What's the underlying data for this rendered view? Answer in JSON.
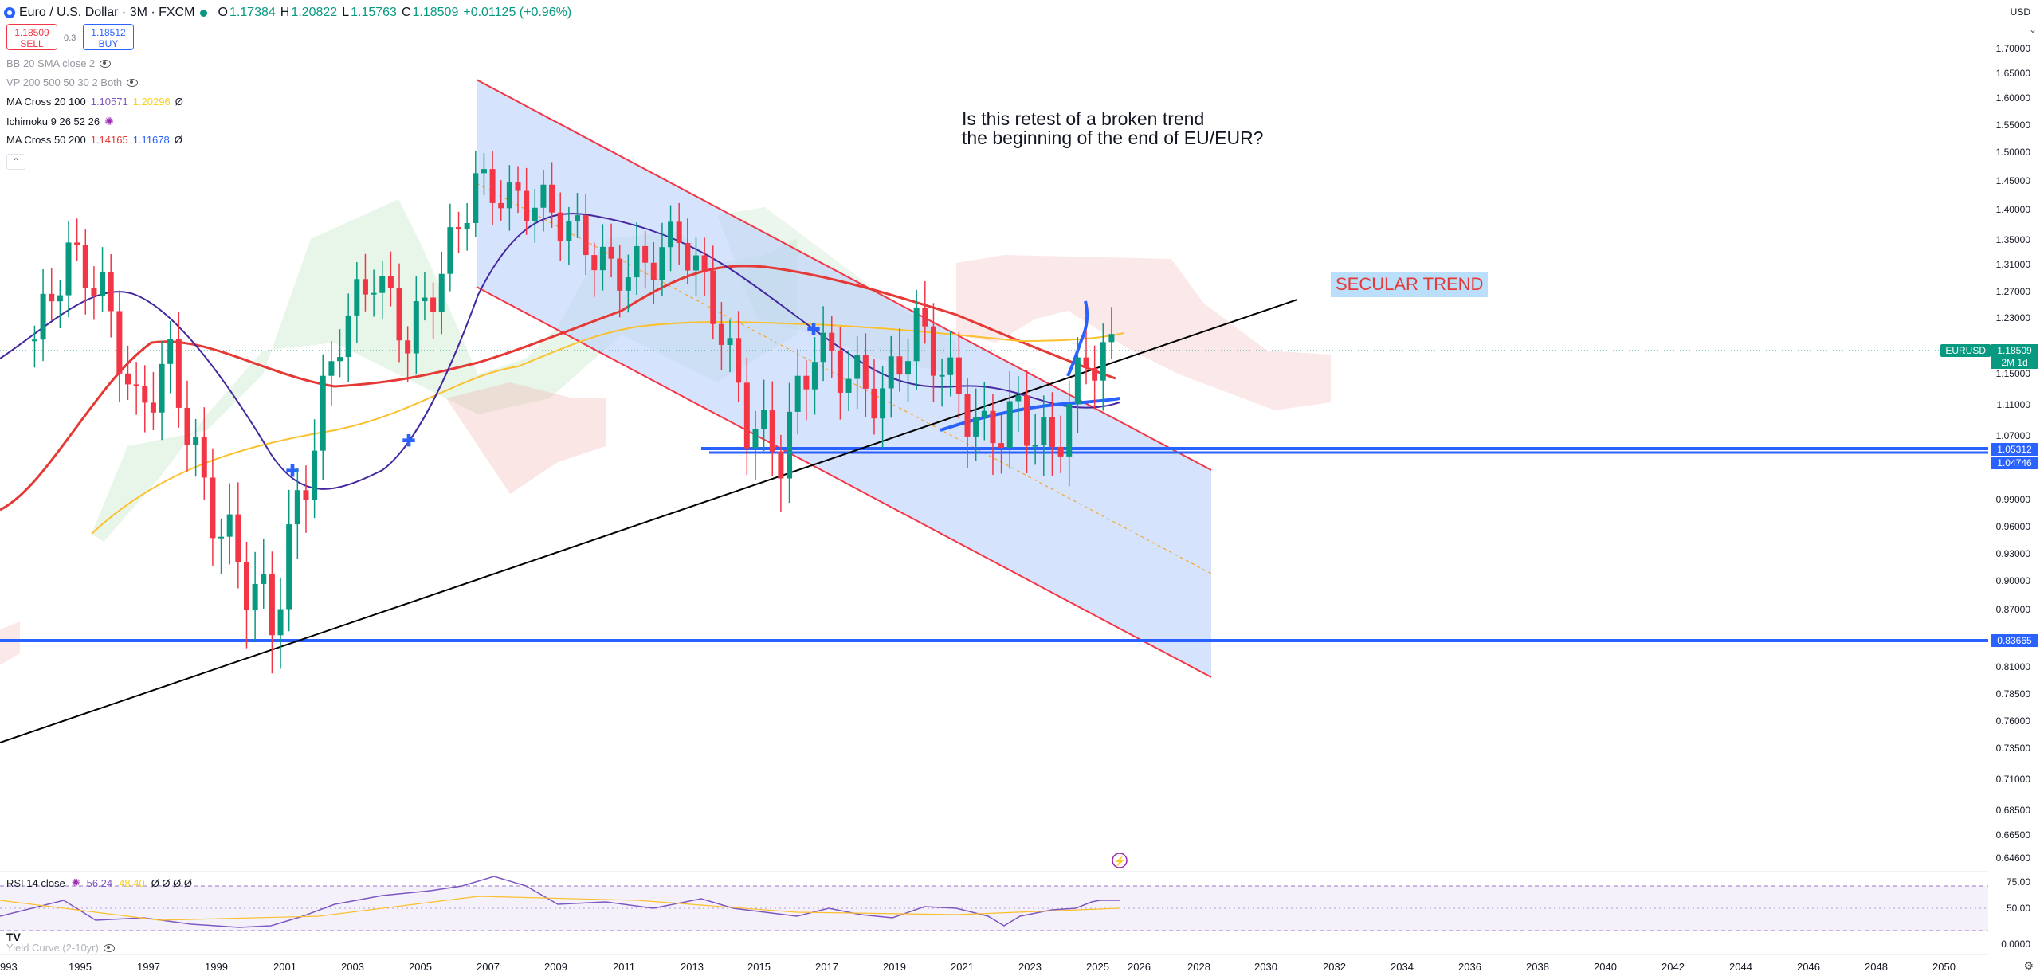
{
  "header": {
    "symbol": "Euro / U.S. Dollar",
    "interval": "3M",
    "exchange": "FXCM",
    "open_label": "O",
    "open": "1.17384",
    "high_label": "H",
    "high": "1.20822",
    "low_label": "L",
    "low": "1.15763",
    "close_label": "C",
    "close": "1.18509",
    "change": "+0.01125 (+0.96%)"
  },
  "trade": {
    "sell_price": "1.18509",
    "sell_label": "SELL",
    "spread": "0.3",
    "buy_price": "1.18512",
    "buy_label": "BUY"
  },
  "indicators": [
    {
      "name": "BB 20 SMA close 2"
    },
    {
      "name": "VP 200 500 50 30 2 Both"
    },
    {
      "name": "MA Cross 20 100",
      "v1": "1.10571",
      "v2": "1.20296",
      "v3": "Ø"
    },
    {
      "name": "Ichimoku 9 26 52 26"
    },
    {
      "name": "MA Cross 50 200",
      "v1": "1.14165",
      "v2": "1.11678",
      "v3": "Ø"
    }
  ],
  "currency": "USD",
  "price_axis": [
    "1.70000",
    "1.65000",
    "1.60000",
    "1.55000",
    "1.50000",
    "1.45000",
    "1.40000",
    "1.35000",
    "1.31000",
    "1.27000",
    "1.23000",
    "1.15000",
    "1.11000",
    "1.07000",
    "0.99000",
    "0.96000",
    "0.93000",
    "0.90000",
    "0.87000",
    "0.81000",
    "0.78500",
    "0.76000",
    "0.73500",
    "0.71000",
    "0.68500",
    "0.66500",
    "0.64600"
  ],
  "price_tags": {
    "symbol_tag": "EURUSD",
    "current": "1.18509",
    "countdown": "2M 1d",
    "level1": "1.05312",
    "level2": "1.04746",
    "level3": "0.83665"
  },
  "rsi": {
    "label": "RSI 14 close",
    "v1": "56.24",
    "v2": "48.40",
    "rest": "Ø Ø Ø Ø",
    "axis": [
      "75.00",
      "50.00",
      "0.0000"
    ]
  },
  "yield_curve": {
    "label": "Yield Curve (2-10yr)"
  },
  "time_axis": [
    "993",
    "1995",
    "1997",
    "1999",
    "2001",
    "2003",
    "2005",
    "2007",
    "2009",
    "2011",
    "2013",
    "2015",
    "2017",
    "2019",
    "2021",
    "2023",
    "2025",
    "2026",
    "2028",
    "2030",
    "2032",
    "2034",
    "2036",
    "2038",
    "2040",
    "2042",
    "2044",
    "2046",
    "2048",
    "2050"
  ],
  "annotations": {
    "question": "Is this retest of a broken trend\nthe beginning of the end of EU/EUR?",
    "secular": "SECULAR TREND"
  },
  "colors": {
    "up": "#089981",
    "down": "#f23645",
    "channel": "#2962ff",
    "trendline": "#000000"
  },
  "chart_data": {
    "type": "candlestick",
    "title": "Euro / U.S. Dollar · 3M · FXCM",
    "xlabel": "",
    "ylabel": "",
    "ylim": [
      0.64,
      1.72
    ],
    "xlim": [
      1993,
      2051
    ],
    "grid": false,
    "series": [
      {
        "name": "EURUSD close",
        "x": [
          1994,
          1995,
          1996,
          1997,
          1998,
          1999,
          2000,
          2001,
          2002,
          2003,
          2004,
          2005,
          2006,
          2007,
          2008,
          2009,
          2010,
          2011,
          2012,
          2013,
          2014,
          2015,
          2016,
          2017,
          2018,
          2019,
          2020,
          2021,
          2022,
          2023,
          2024,
          2025,
          2026
        ],
        "values": [
          1.2,
          1.33,
          1.27,
          1.1,
          1.17,
          1.0,
          0.92,
          0.86,
          1.02,
          1.21,
          1.3,
          1.2,
          1.3,
          1.45,
          1.42,
          1.41,
          1.36,
          1.3,
          1.31,
          1.36,
          1.25,
          1.09,
          1.05,
          1.19,
          1.15,
          1.12,
          1.22,
          1.14,
          1.07,
          1.1,
          1.05,
          1.17,
          1.185
        ]
      }
    ],
    "levels": [
      1.05312,
      1.04746,
      0.83665
    ],
    "rsi_last": [
      56.24,
      48.4
    ]
  }
}
